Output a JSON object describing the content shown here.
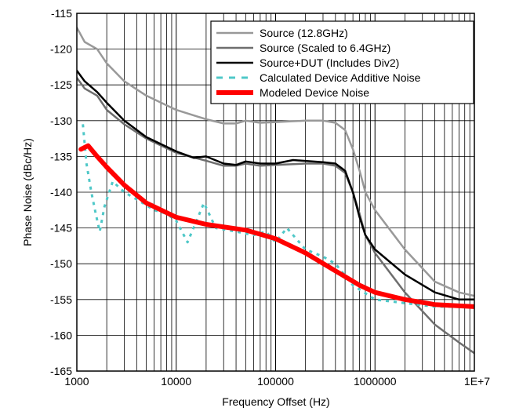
{
  "chart_data": {
    "type": "line",
    "title": "",
    "xlabel": "Frequency Offset (Hz)",
    "ylabel": "Phase Noise (dBc/Hz)",
    "x_scale": "log",
    "xlim": [
      1000,
      10000000
    ],
    "ylim": [
      -165,
      -115
    ],
    "grid": true,
    "legend_position": "top-right",
    "x_ticks": [
      {
        "value": 1000,
        "label": "1000"
      },
      {
        "value": 10000,
        "label": "10000"
      },
      {
        "value": 100000,
        "label": "100000"
      },
      {
        "value": 1000000,
        "label": "1000000"
      },
      {
        "value": 10000000,
        "label": "1E+7"
      }
    ],
    "y_ticks": [
      {
        "value": -115,
        "label": "-115"
      },
      {
        "value": -120,
        "label": "-120"
      },
      {
        "value": -125,
        "label": "-125"
      },
      {
        "value": -130,
        "label": "-130"
      },
      {
        "value": -135,
        "label": "-135"
      },
      {
        "value": -140,
        "label": "-140"
      },
      {
        "value": -145,
        "label": "-145"
      },
      {
        "value": -150,
        "label": "-150"
      },
      {
        "value": -155,
        "label": "-155"
      },
      {
        "value": -160,
        "label": "-160"
      },
      {
        "value": -165,
        "label": "-165"
      }
    ],
    "series": [
      {
        "name": "Source (12.8GHz)",
        "color": "#999999",
        "style": "solid",
        "points": [
          [
            1000,
            -117
          ],
          [
            1200,
            -119
          ],
          [
            1600,
            -120
          ],
          [
            2000,
            -122
          ],
          [
            3000,
            -124.5
          ],
          [
            5000,
            -126.5
          ],
          [
            10000,
            -128.5
          ],
          [
            20000,
            -129.8
          ],
          [
            30000,
            -130.4
          ],
          [
            40000,
            -130.4
          ],
          [
            50000,
            -130
          ],
          [
            70000,
            -130.3
          ],
          [
            100000,
            -130.2
          ],
          [
            200000,
            -130
          ],
          [
            300000,
            -130
          ],
          [
            400000,
            -130.3
          ],
          [
            500000,
            -131.3
          ],
          [
            600000,
            -134
          ],
          [
            700000,
            -137
          ],
          [
            800000,
            -140
          ],
          [
            1000000,
            -142.5
          ],
          [
            2000000,
            -148
          ],
          [
            4000000,
            -152.5
          ],
          [
            7000000,
            -154
          ],
          [
            10000000,
            -154.5
          ]
        ]
      },
      {
        "name": "Source (Scaled to 6.4GHz)",
        "color": "#6e6e6e",
        "style": "solid",
        "points": [
          [
            1000,
            -124
          ],
          [
            1200,
            -125.5
          ],
          [
            1600,
            -126.5
          ],
          [
            2000,
            -128.5
          ],
          [
            3000,
            -130.5
          ],
          [
            5000,
            -132.5
          ],
          [
            10000,
            -134.5
          ],
          [
            20000,
            -135.6
          ],
          [
            30000,
            -136.3
          ],
          [
            40000,
            -136.3
          ],
          [
            50000,
            -136
          ],
          [
            70000,
            -136.3
          ],
          [
            100000,
            -136.2
          ],
          [
            200000,
            -136
          ],
          [
            300000,
            -136
          ],
          [
            400000,
            -136.3
          ],
          [
            500000,
            -137.3
          ],
          [
            600000,
            -140
          ],
          [
            700000,
            -143
          ],
          [
            800000,
            -146
          ],
          [
            1000000,
            -148.5
          ],
          [
            2000000,
            -154
          ],
          [
            4000000,
            -158.5
          ],
          [
            7000000,
            -161
          ],
          [
            10000000,
            -162.5
          ]
        ]
      },
      {
        "name": "Source+DUT (Includes Div2)",
        "color": "#000000",
        "style": "solid",
        "points": [
          [
            1000,
            -123
          ],
          [
            1200,
            -124.5
          ],
          [
            1600,
            -126
          ],
          [
            2000,
            -127.5
          ],
          [
            3000,
            -130
          ],
          [
            5000,
            -132.3
          ],
          [
            10000,
            -134.3
          ],
          [
            15000,
            -135.2
          ],
          [
            20000,
            -135
          ],
          [
            30000,
            -136
          ],
          [
            40000,
            -136.2
          ],
          [
            50000,
            -135.7
          ],
          [
            70000,
            -136
          ],
          [
            100000,
            -136
          ],
          [
            150000,
            -135.5
          ],
          [
            300000,
            -135.8
          ],
          [
            400000,
            -136
          ],
          [
            500000,
            -137
          ],
          [
            600000,
            -140
          ],
          [
            700000,
            -143.5
          ],
          [
            800000,
            -146
          ],
          [
            1000000,
            -148
          ],
          [
            2000000,
            -151.5
          ],
          [
            4000000,
            -154
          ],
          [
            7000000,
            -155
          ],
          [
            10000000,
            -155
          ]
        ]
      },
      {
        "name": "Calculated Device Additive Noise",
        "color": "#4fc8c8",
        "style": "dashed",
        "points": [
          [
            1150,
            -130.5
          ],
          [
            1250,
            -136
          ],
          [
            1400,
            -140
          ],
          [
            1550,
            -143
          ],
          [
            1700,
            -145.5
          ],
          [
            1900,
            -142
          ],
          [
            2300,
            -138.5
          ],
          [
            3000,
            -140
          ],
          [
            4000,
            -141
          ],
          [
            6000,
            -142.5
          ],
          [
            8000,
            -143
          ],
          [
            10000,
            -144
          ],
          [
            13000,
            -147
          ],
          [
            16000,
            -144
          ],
          [
            19000,
            -141.5
          ],
          [
            25000,
            -145
          ],
          [
            40000,
            -145.5
          ],
          [
            60000,
            -146
          ],
          [
            80000,
            -145.5
          ],
          [
            100000,
            -147
          ],
          [
            130000,
            -145
          ],
          [
            200000,
            -148
          ],
          [
            300000,
            -149
          ],
          [
            400000,
            -150
          ],
          [
            600000,
            -153
          ],
          [
            1000000,
            -155
          ],
          [
            2000000,
            -155.5
          ],
          [
            4000000,
            -156
          ],
          [
            10000000,
            -156
          ]
        ]
      },
      {
        "name": "Modeled Device Noise",
        "color": "#ff0000",
        "style": "thick",
        "points": [
          [
            1100,
            -134
          ],
          [
            1300,
            -133.5
          ],
          [
            1600,
            -135
          ],
          [
            2000,
            -136.5
          ],
          [
            3000,
            -139
          ],
          [
            5000,
            -141.5
          ],
          [
            10000,
            -143.5
          ],
          [
            20000,
            -144.5
          ],
          [
            50000,
            -145.3
          ],
          [
            100000,
            -146.5
          ],
          [
            200000,
            -148.5
          ],
          [
            400000,
            -151
          ],
          [
            700000,
            -153
          ],
          [
            1000000,
            -154
          ],
          [
            2000000,
            -155
          ],
          [
            4000000,
            -155.7
          ],
          [
            10000000,
            -156
          ]
        ]
      }
    ]
  }
}
